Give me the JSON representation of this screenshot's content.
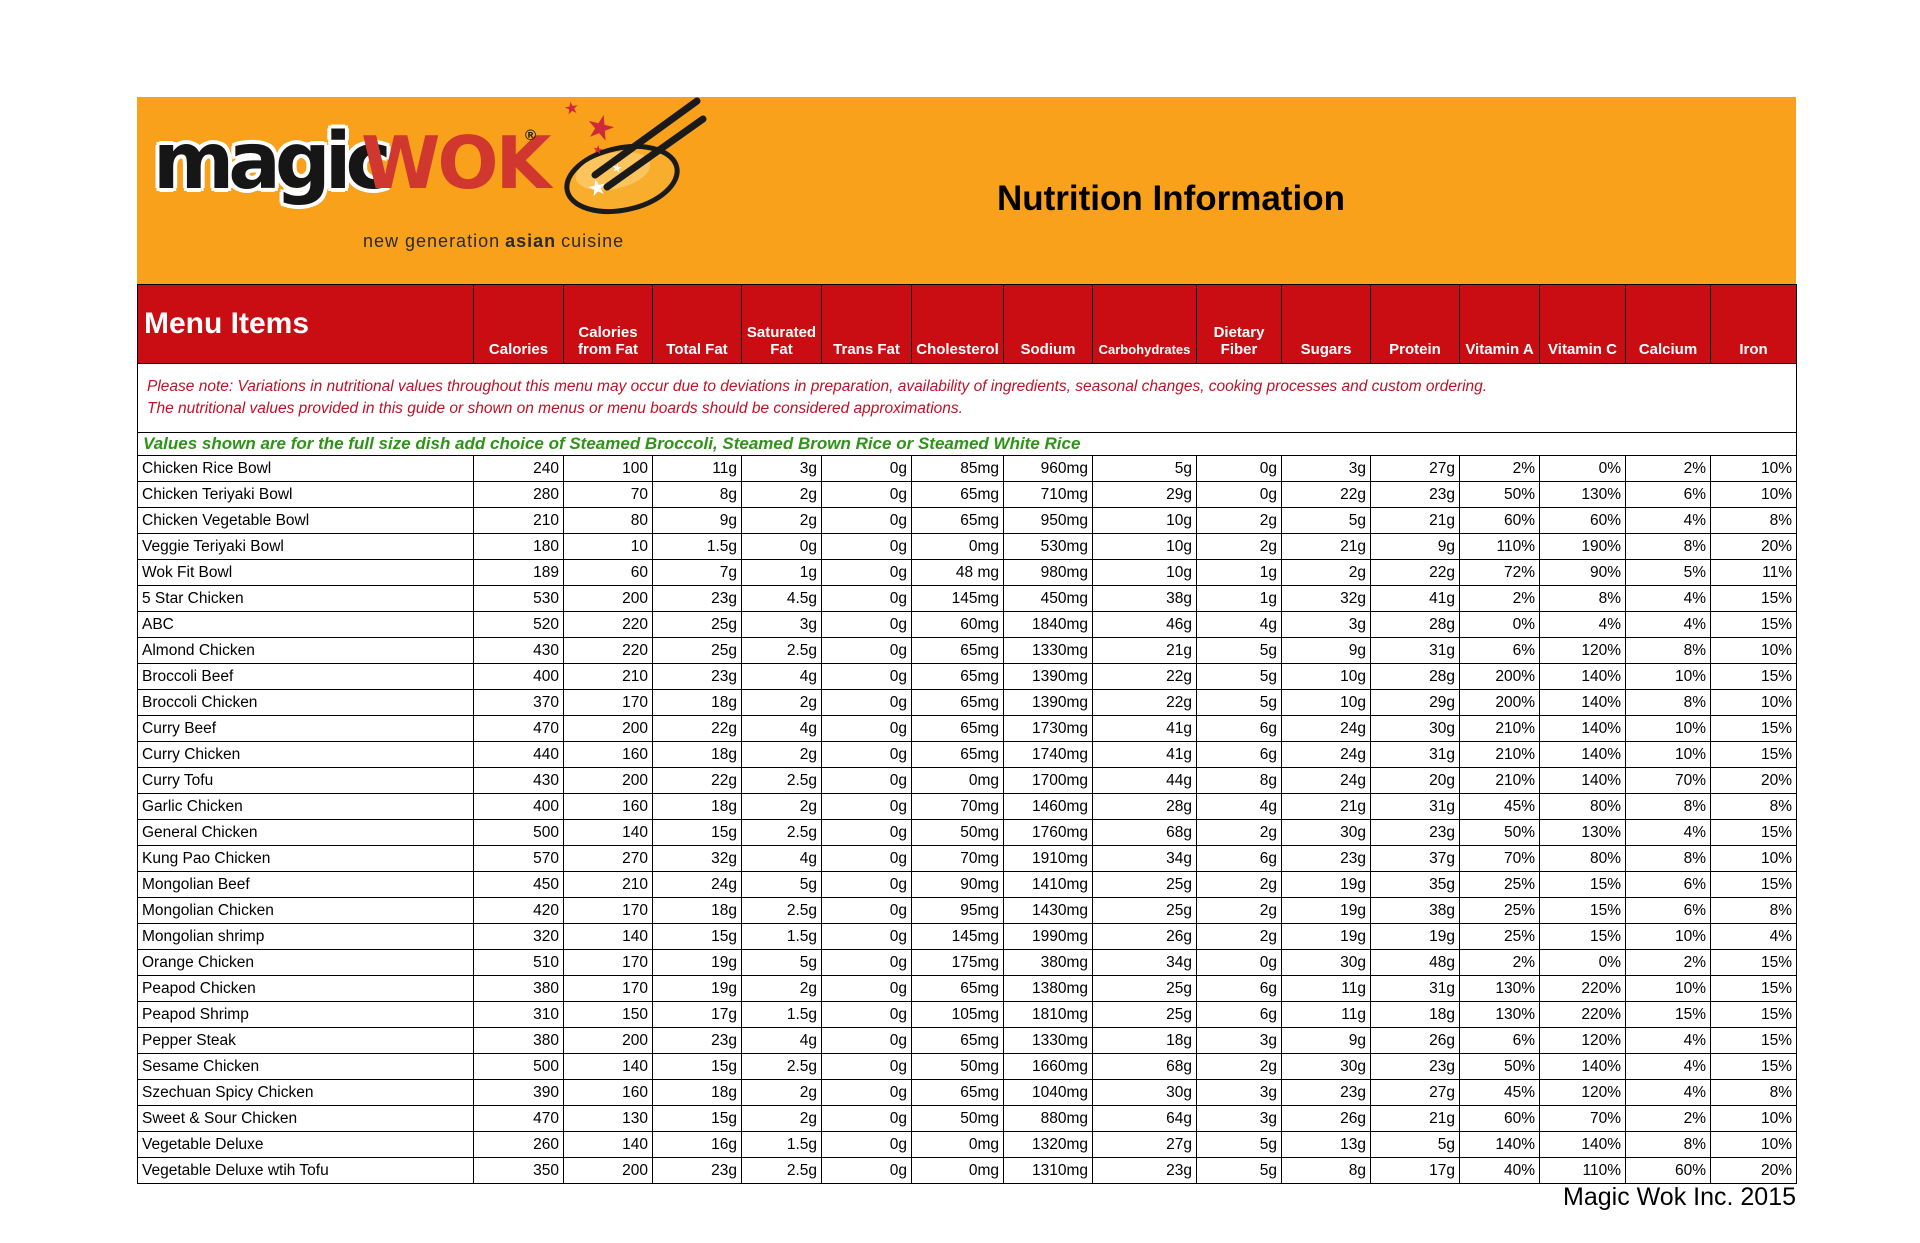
{
  "colors": {
    "band_orange": "#F9A11B",
    "header_red": "#C90D12",
    "note_red": "#BE1226",
    "values_note_green": "#2E9418",
    "wok_wordmark_red": "#D0372F",
    "star_red": "#CF2A3C",
    "wok_bowl_orange": "#F8AD2D"
  },
  "header": {
    "logo": {
      "magic": "magic",
      "wok": "WOK",
      "registered": "®",
      "tagline_pre": "new generation",
      "tagline_bold": "asian",
      "tagline_post": "cuisine"
    },
    "title": "Nutrition Information"
  },
  "table": {
    "menu_items_label": "Menu Items",
    "columns": [
      "Calories",
      "Calories from Fat",
      "Total Fat",
      "Saturated Fat",
      "Trans Fat",
      "Cholesterol",
      "Sodium",
      "Carbohydrates",
      "Dietary Fiber",
      "Sugars",
      "Protein",
      "Vitamin A",
      "Vitamin C",
      "Calcium",
      "Iron"
    ],
    "note_line1": "Please note: Variations in nutritional values throughout this menu may occur due to deviations in preparation, availability of ingredients, seasonal changes, cooking processes and custom ordering.",
    "note_line2": "The nutritional values provided in this guide or shown on menus or menu boards should be considered approximations.",
    "values_note": "Values shown are for the full size dish add choice of Steamed Broccoli,  Steamed Brown Rice or Steamed White Rice",
    "rows": [
      {
        "name": "Chicken Rice Bowl",
        "values": [
          "240",
          "100",
          "11g",
          "3g",
          "0g",
          "85mg",
          "960mg",
          "5g",
          "0g",
          "3g",
          "27g",
          "2%",
          "0%",
          "2%",
          "10%"
        ]
      },
      {
        "name": "Chicken Teriyaki Bowl",
        "values": [
          "280",
          "70",
          "8g",
          "2g",
          "0g",
          "65mg",
          "710mg",
          "29g",
          "0g",
          "22g",
          "23g",
          "50%",
          "130%",
          "6%",
          "10%"
        ]
      },
      {
        "name": "Chicken Vegetable Bowl",
        "values": [
          "210",
          "80",
          "9g",
          "2g",
          "0g",
          "65mg",
          "950mg",
          "10g",
          "2g",
          "5g",
          "21g",
          "60%",
          "60%",
          "4%",
          "8%"
        ]
      },
      {
        "name": "Veggie Teriyaki Bowl",
        "values": [
          "180",
          "10",
          "1.5g",
          "0g",
          "0g",
          "0mg",
          "530mg",
          "10g",
          "2g",
          "21g",
          "9g",
          "110%",
          "190%",
          "8%",
          "20%"
        ]
      },
      {
        "name": "Wok Fit Bowl",
        "values": [
          "189",
          "60",
          "7g",
          "1g",
          "0g",
          "48 mg",
          "980mg",
          "10g",
          "1g",
          "2g",
          "22g",
          "72%",
          "90%",
          "5%",
          "11%"
        ]
      },
      {
        "name": "5 Star Chicken",
        "values": [
          "530",
          "200",
          "23g",
          "4.5g",
          "0g",
          "145mg",
          "450mg",
          "38g",
          "1g",
          "32g",
          "41g",
          "2%",
          "8%",
          "4%",
          "15%"
        ]
      },
      {
        "name": "ABC",
        "values": [
          "520",
          "220",
          "25g",
          "3g",
          "0g",
          "60mg",
          "1840mg",
          "46g",
          "4g",
          "3g",
          "28g",
          "0%",
          "4%",
          "4%",
          "15%"
        ]
      },
      {
        "name": "Almond Chicken",
        "values": [
          "430",
          "220",
          "25g",
          "2.5g",
          "0g",
          "65mg",
          "1330mg",
          "21g",
          "5g",
          "9g",
          "31g",
          "6%",
          "120%",
          "8%",
          "10%"
        ]
      },
      {
        "name": "Broccoli Beef",
        "values": [
          "400",
          "210",
          "23g",
          "4g",
          "0g",
          "65mg",
          "1390mg",
          "22g",
          "5g",
          "10g",
          "28g",
          "200%",
          "140%",
          "10%",
          "15%"
        ]
      },
      {
        "name": "Broccoli Chicken",
        "values": [
          "370",
          "170",
          "18g",
          "2g",
          "0g",
          "65mg",
          "1390mg",
          "22g",
          "5g",
          "10g",
          "29g",
          "200%",
          "140%",
          "8%",
          "10%"
        ]
      },
      {
        "name": "Curry Beef",
        "values": [
          "470",
          "200",
          "22g",
          "4g",
          "0g",
          "65mg",
          "1730mg",
          "41g",
          "6g",
          "24g",
          "30g",
          "210%",
          "140%",
          "10%",
          "15%"
        ]
      },
      {
        "name": "Curry Chicken",
        "values": [
          "440",
          "160",
          "18g",
          "2g",
          "0g",
          "65mg",
          "1740mg",
          "41g",
          "6g",
          "24g",
          "31g",
          "210%",
          "140%",
          "10%",
          "15%"
        ]
      },
      {
        "name": "Curry Tofu",
        "values": [
          "430",
          "200",
          "22g",
          "2.5g",
          "0g",
          "0mg",
          "1700mg",
          "44g",
          "8g",
          "24g",
          "20g",
          "210%",
          "140%",
          "70%",
          "20%"
        ]
      },
      {
        "name": "Garlic Chicken",
        "values": [
          "400",
          "160",
          "18g",
          "2g",
          "0g",
          "70mg",
          "1460mg",
          "28g",
          "4g",
          "21g",
          "31g",
          "45%",
          "80%",
          "8%",
          "8%"
        ]
      },
      {
        "name": "General Chicken",
        "values": [
          "500",
          "140",
          "15g",
          "2.5g",
          "0g",
          "50mg",
          "1760mg",
          "68g",
          "2g",
          "30g",
          "23g",
          "50%",
          "130%",
          "4%",
          "15%"
        ]
      },
      {
        "name": "Kung Pao Chicken",
        "values": [
          "570",
          "270",
          "32g",
          "4g",
          "0g",
          "70mg",
          "1910mg",
          "34g",
          "6g",
          "23g",
          "37g",
          "70%",
          "80%",
          "8%",
          "10%"
        ]
      },
      {
        "name": "Mongolian Beef",
        "values": [
          "450",
          "210",
          "24g",
          "5g",
          "0g",
          "90mg",
          "1410mg",
          "25g",
          "2g",
          "19g",
          "35g",
          "25%",
          "15%",
          "6%",
          "15%"
        ]
      },
      {
        "name": "Mongolian Chicken",
        "values": [
          "420",
          "170",
          "18g",
          "2.5g",
          "0g",
          "95mg",
          "1430mg",
          "25g",
          "2g",
          "19g",
          "38g",
          "25%",
          "15%",
          "6%",
          "8%"
        ]
      },
      {
        "name": "Mongolian shrimp",
        "values": [
          "320",
          "140",
          "15g",
          "1.5g",
          "0g",
          "145mg",
          "1990mg",
          "26g",
          "2g",
          "19g",
          "19g",
          "25%",
          "15%",
          "10%",
          "4%"
        ]
      },
      {
        "name": "Orange Chicken",
        "values": [
          "510",
          "170",
          "19g",
          "5g",
          "0g",
          "175mg",
          "380mg",
          "34g",
          "0g",
          "30g",
          "48g",
          "2%",
          "0%",
          "2%",
          "15%"
        ]
      },
      {
        "name": "Peapod Chicken",
        "values": [
          "380",
          "170",
          "19g",
          "2g",
          "0g",
          "65mg",
          "1380mg",
          "25g",
          "6g",
          "11g",
          "31g",
          "130%",
          "220%",
          "10%",
          "15%"
        ]
      },
      {
        "name": "Peapod Shrimp",
        "values": [
          "310",
          "150",
          "17g",
          "1.5g",
          "0g",
          "105mg",
          "1810mg",
          "25g",
          "6g",
          "11g",
          "18g",
          "130%",
          "220%",
          "15%",
          "15%"
        ]
      },
      {
        "name": "Pepper Steak",
        "values": [
          "380",
          "200",
          "23g",
          "4g",
          "0g",
          "65mg",
          "1330mg",
          "18g",
          "3g",
          "9g",
          "26g",
          "6%",
          "120%",
          "4%",
          "15%"
        ]
      },
      {
        "name": "Sesame Chicken",
        "values": [
          "500",
          "140",
          "15g",
          "2.5g",
          "0g",
          "50mg",
          "1660mg",
          "68g",
          "2g",
          "30g",
          "23g",
          "50%",
          "140%",
          "4%",
          "15%"
        ]
      },
      {
        "name": "Szechuan Spicy Chicken",
        "values": [
          "390",
          "160",
          "18g",
          "2g",
          "0g",
          "65mg",
          "1040mg",
          "30g",
          "3g",
          "23g",
          "27g",
          "45%",
          "120%",
          "4%",
          "8%"
        ]
      },
      {
        "name": "Sweet & Sour Chicken",
        "values": [
          "470",
          "130",
          "15g",
          "2g",
          "0g",
          "50mg",
          "880mg",
          "64g",
          "3g",
          "26g",
          "21g",
          "60%",
          "70%",
          "2%",
          "10%"
        ]
      },
      {
        "name": "Vegetable Deluxe",
        "values": [
          "260",
          "140",
          "16g",
          "1.5g",
          "0g",
          "0mg",
          "1320mg",
          "27g",
          "5g",
          "13g",
          "5g",
          "140%",
          "140%",
          "8%",
          "10%"
        ]
      },
      {
        "name": "Vegetable Deluxe wtih Tofu",
        "values": [
          "350",
          "200",
          "23g",
          "2.5g",
          "0g",
          "0mg",
          "1310mg",
          "23g",
          "5g",
          "8g",
          "17g",
          "40%",
          "110%",
          "60%",
          "20%"
        ]
      }
    ]
  },
  "footer": {
    "text": "Magic Wok Inc. 2015"
  }
}
